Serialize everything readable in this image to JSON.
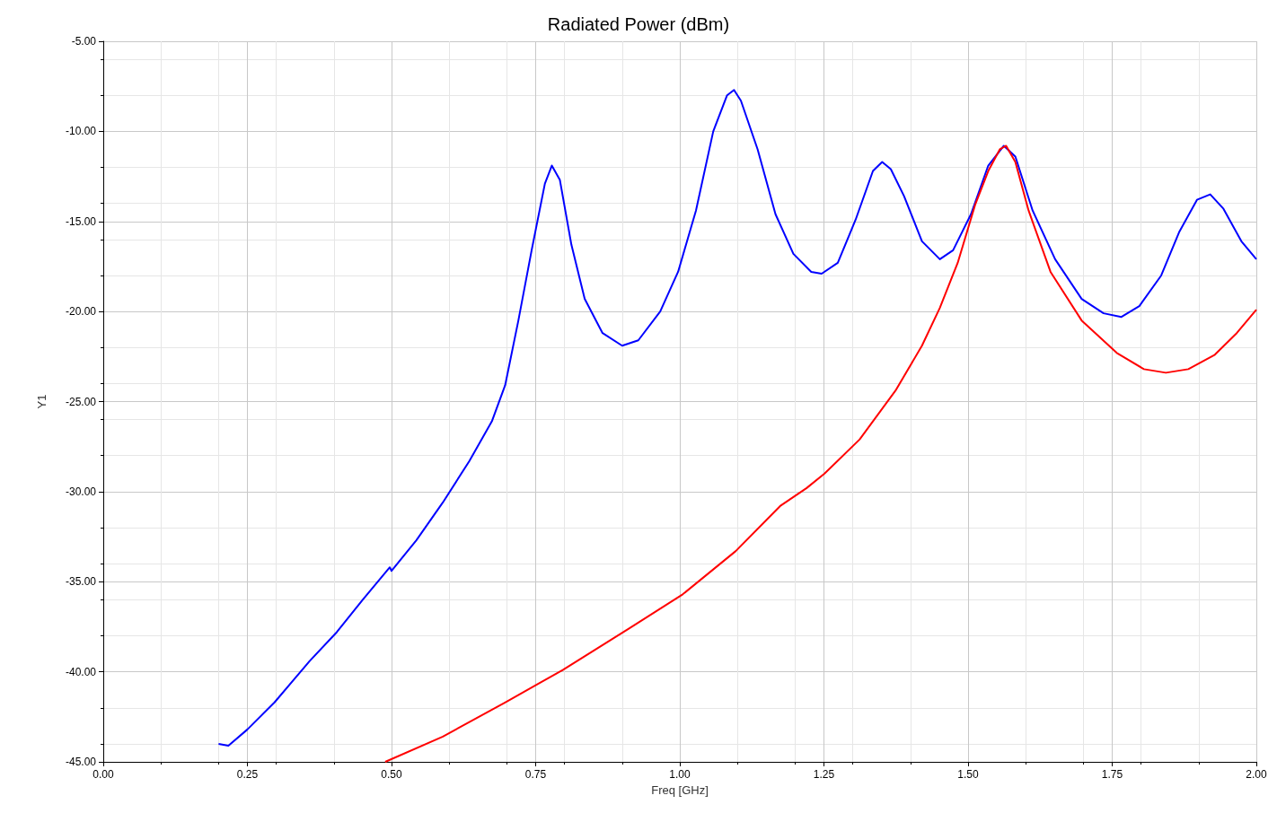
{
  "chart_data": {
    "type": "line",
    "title": "Radiated Power (dBm)",
    "xlabel": "Freq [GHz]",
    "ylabel": "Y1",
    "xlim": [
      0,
      2
    ],
    "ylim": [
      -45,
      -5
    ],
    "xticks": [
      {
        "value": 0,
        "label": "0.00"
      },
      {
        "value": 0.25,
        "label": "0.25"
      },
      {
        "value": 0.5,
        "label": "0.50"
      },
      {
        "value": 0.75,
        "label": "0.75"
      },
      {
        "value": 1,
        "label": "1.00"
      },
      {
        "value": 1.25,
        "label": "1.25"
      },
      {
        "value": 1.5,
        "label": "1.50"
      },
      {
        "value": 1.75,
        "label": "1.75"
      },
      {
        "value": 2,
        "label": "2.00"
      }
    ],
    "yticks": [
      {
        "value": -45,
        "label": "-45.00"
      },
      {
        "value": -40,
        "label": "-40.00"
      },
      {
        "value": -35,
        "label": "-35.00"
      },
      {
        "value": -30,
        "label": "-30.00"
      },
      {
        "value": -25,
        "label": "-25.00"
      },
      {
        "value": -20,
        "label": "-20.00"
      },
      {
        "value": -15,
        "label": "-15.00"
      },
      {
        "value": -10,
        "label": "-10.00"
      },
      {
        "value": -5,
        "label": "-5.00"
      }
    ],
    "grid": true,
    "marker": "none",
    "line_style": "solid",
    "series": [
      {
        "color": "#0000ff",
        "x": [
          0.2,
          0.217,
          0.25,
          0.297,
          0.358,
          0.405,
          0.45,
          0.497,
          0.5,
          0.543,
          0.589,
          0.635,
          0.674,
          0.697,
          0.72,
          0.743,
          0.766,
          0.778,
          0.792,
          0.812,
          0.835,
          0.866,
          0.9,
          0.928,
          0.966,
          0.997,
          1.028,
          1.058,
          1.082,
          1.094,
          1.106,
          1.135,
          1.166,
          1.197,
          1.228,
          1.246,
          1.274,
          1.305,
          1.335,
          1.351,
          1.366,
          1.389,
          1.42,
          1.451,
          1.474,
          1.505,
          1.535,
          1.562,
          1.582,
          1.612,
          1.651,
          1.697,
          1.735,
          1.766,
          1.797,
          1.835,
          1.866,
          1.897,
          1.92,
          1.943,
          1.974,
          2.0
        ],
        "values": [
          -44.0,
          -44.1,
          -43.2,
          -41.7,
          -39.4,
          -37.8,
          -36.0,
          -34.2,
          -34.4,
          -32.7,
          -30.6,
          -28.3,
          -26.1,
          -24.1,
          -20.5,
          -16.6,
          -12.9,
          -11.9,
          -12.7,
          -16.3,
          -19.3,
          -21.2,
          -21.9,
          -21.6,
          -20.0,
          -17.8,
          -14.4,
          -10.0,
          -8.0,
          -7.7,
          -8.3,
          -11.0,
          -14.6,
          -16.8,
          -17.8,
          -17.9,
          -17.3,
          -14.9,
          -12.2,
          -11.7,
          -12.1,
          -13.6,
          -16.1,
          -17.1,
          -16.6,
          -14.6,
          -11.9,
          -10.8,
          -11.4,
          -14.4,
          -17.1,
          -19.3,
          -20.1,
          -20.3,
          -19.7,
          -18.0,
          -15.6,
          -13.8,
          -13.5,
          -14.3,
          -16.1,
          -17.1
        ]
      },
      {
        "color": "#ff0000",
        "x": [
          0.489,
          0.589,
          0.697,
          0.797,
          0.912,
          1.005,
          1.097,
          1.174,
          1.22,
          1.251,
          1.312,
          1.374,
          1.42,
          1.451,
          1.482,
          1.512,
          1.535,
          1.555,
          1.566,
          1.582,
          1.605,
          1.643,
          1.697,
          1.758,
          1.805,
          1.843,
          1.882,
          1.928,
          1.966,
          2.0
        ],
        "values": [
          -45.0,
          -43.6,
          -41.7,
          -39.9,
          -37.6,
          -35.7,
          -33.3,
          -30.8,
          -29.8,
          -29.0,
          -27.1,
          -24.4,
          -21.9,
          -19.8,
          -17.3,
          -14.1,
          -12.2,
          -11.0,
          -10.8,
          -11.7,
          -14.4,
          -17.8,
          -20.5,
          -22.3,
          -23.2,
          -23.4,
          -23.2,
          -22.4,
          -21.2,
          -19.9
        ]
      }
    ]
  }
}
